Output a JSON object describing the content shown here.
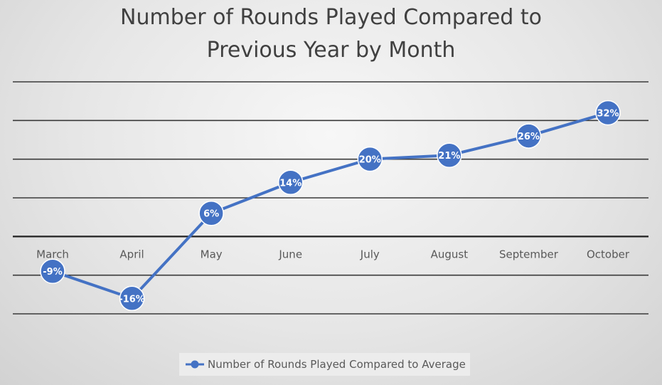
{
  "chart_data": {
    "type": "line",
    "title": "Number of Rounds Played Compared to Previous Year by Month",
    "title_lines": [
      "Number of Rounds Played Compared to",
      "Previous Year by Month"
    ],
    "xlabel": "",
    "ylabel": "",
    "categories": [
      "March",
      "April",
      "May",
      "June",
      "July",
      "August",
      "September",
      "October"
    ],
    "series": [
      {
        "name": "Number of Rounds Played Compared to Average",
        "values": [
          -9,
          -16,
          6,
          14,
          20,
          21,
          26,
          32
        ],
        "labels": [
          "-9%",
          "-16%",
          "6%",
          "14%",
          "20%",
          "21%",
          "26%",
          "32%"
        ],
        "color": "#4472c4"
      }
    ],
    "ylim": [
      -20,
      40
    ],
    "gridlines": [
      -20,
      -10,
      0,
      10,
      20,
      30,
      40
    ],
    "grid": true,
    "y_tick_labels": false,
    "legend_position": "bottom"
  }
}
